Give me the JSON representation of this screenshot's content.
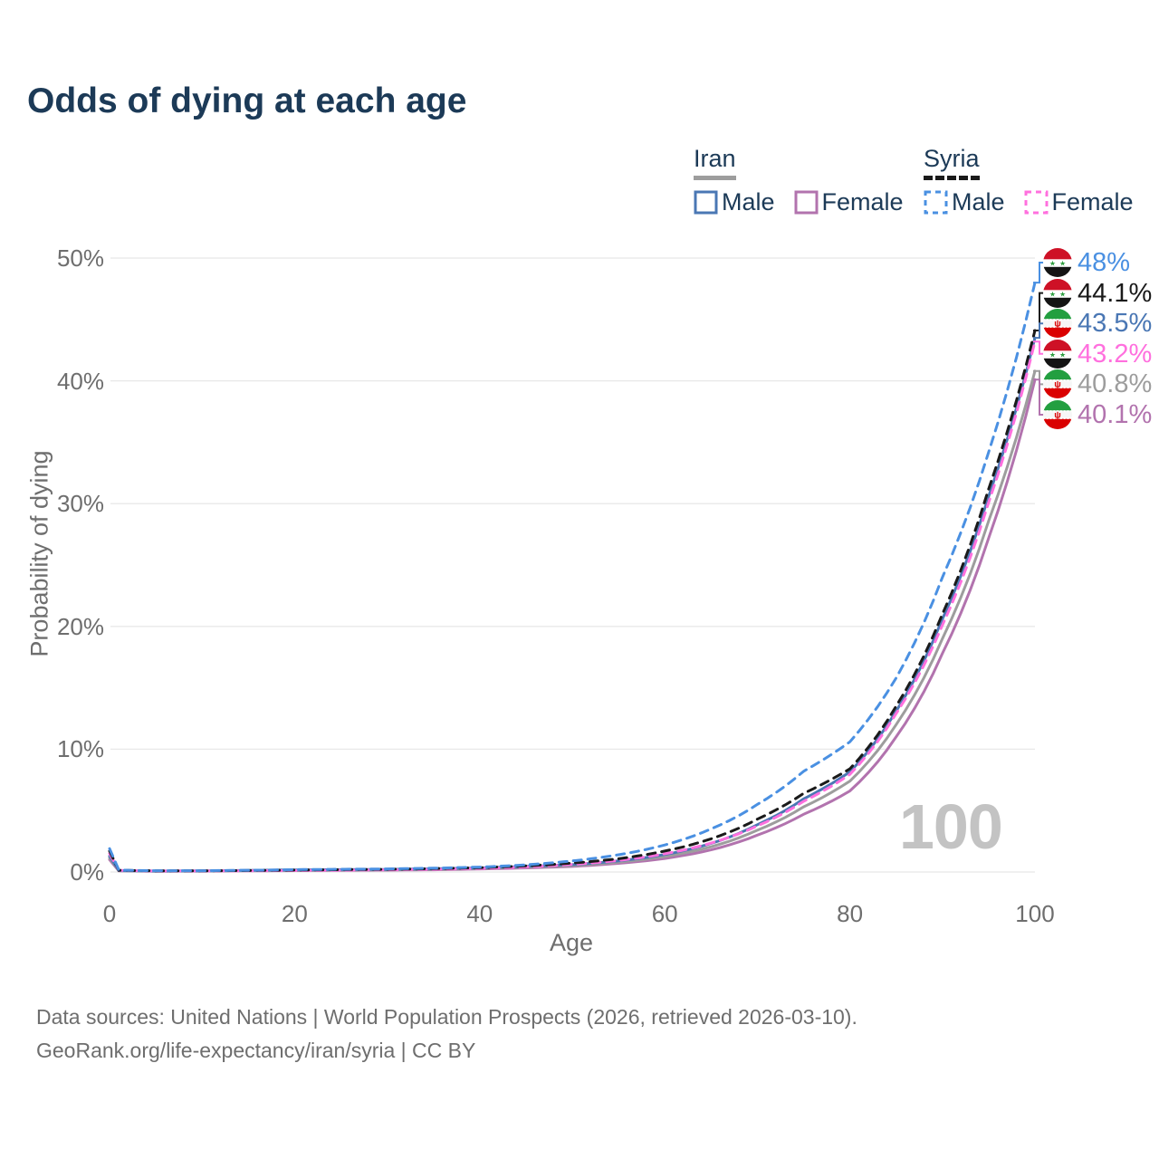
{
  "title": "Odds of dying at each age",
  "watermark_age": "100",
  "legend": {
    "groups": [
      {
        "label": "Iran",
        "line_style": "solid",
        "line_color": "#9d9d9d",
        "items": [
          {
            "label": "Male",
            "color": "#4a77b4"
          },
          {
            "label": "Female",
            "color": "#b273ae"
          }
        ]
      },
      {
        "label": "Syria",
        "line_style": "dashed",
        "line_color": "#1a1a1a",
        "items": [
          {
            "label": "Male",
            "color": "#4a90e2"
          },
          {
            "label": "Female",
            "color": "#ff70de"
          }
        ]
      }
    ]
  },
  "axes": {
    "x": {
      "label": "Age",
      "ticks": [
        "0",
        "20",
        "40",
        "60",
        "80",
        "100"
      ],
      "range": [
        0,
        100
      ]
    },
    "y": {
      "label": "Probability of dying",
      "ticks": [
        "0%",
        "10%",
        "20%",
        "30%",
        "40%",
        "50%"
      ],
      "range": [
        0,
        50
      ],
      "grid": true
    }
  },
  "chart_data": {
    "type": "line",
    "xlabel": "Age",
    "ylabel": "Probability of dying",
    "xlim": [
      0,
      100
    ],
    "ylim": [
      0,
      50
    ],
    "x": [
      0,
      1,
      5,
      10,
      15,
      20,
      25,
      30,
      35,
      40,
      45,
      50,
      55,
      60,
      65,
      70,
      75,
      80,
      85,
      90,
      95,
      100
    ],
    "series": [
      {
        "name": "Syria Male",
        "country": "syria",
        "sex": "male",
        "color": "#4a90e2",
        "dash": true,
        "end_label": "48%",
        "values": [
          1.9,
          0.16,
          0.1,
          0.1,
          0.14,
          0.19,
          0.22,
          0.25,
          0.31,
          0.4,
          0.58,
          0.9,
          1.4,
          2.2,
          3.5,
          5.5,
          8.2,
          10.6,
          15.8,
          24.0,
          34.2,
          48.0
        ]
      },
      {
        "name": "Syria Both sexes",
        "country": "syria",
        "sex": "both",
        "color": "#1a1a1a",
        "dash": true,
        "end_label": "44.1%",
        "values": [
          1.7,
          0.14,
          0.09,
          0.09,
          0.12,
          0.16,
          0.19,
          0.22,
          0.27,
          0.35,
          0.5,
          0.72,
          1.08,
          1.7,
          2.7,
          4.3,
          6.4,
          8.4,
          13.5,
          21.0,
          31.2,
          44.1
        ]
      },
      {
        "name": "Iran Male",
        "country": "iran",
        "sex": "male",
        "color": "#4a77b4",
        "dash": false,
        "end_label": "43.5%",
        "values": [
          1.3,
          0.11,
          0.08,
          0.09,
          0.13,
          0.17,
          0.19,
          0.21,
          0.26,
          0.33,
          0.46,
          0.6,
          0.9,
          1.42,
          2.32,
          3.85,
          5.95,
          8.15,
          13.1,
          20.6,
          30.6,
          43.5
        ]
      },
      {
        "name": "Syria Female",
        "country": "syria",
        "sex": "female",
        "color": "#ff70de",
        "dash": true,
        "end_label": "43.2%",
        "values": [
          1.5,
          0.13,
          0.08,
          0.08,
          0.1,
          0.12,
          0.15,
          0.18,
          0.22,
          0.29,
          0.41,
          0.62,
          0.94,
          1.48,
          2.35,
          3.75,
          5.75,
          7.95,
          12.9,
          20.1,
          30.1,
          43.2
        ]
      },
      {
        "name": "Iran Both sexes",
        "country": "iran",
        "sex": "both",
        "color": "#9d9d9d",
        "dash": false,
        "end_label": "40.8%",
        "values": [
          1.15,
          0.1,
          0.07,
          0.08,
          0.11,
          0.14,
          0.16,
          0.18,
          0.22,
          0.28,
          0.4,
          0.52,
          0.8,
          1.26,
          2.05,
          3.4,
          5.3,
          7.4,
          12.0,
          19.0,
          28.6,
          40.8
        ]
      },
      {
        "name": "Iran Female",
        "country": "iran",
        "sex": "female",
        "color": "#b273ae",
        "dash": false,
        "end_label": "40.1%",
        "values": [
          1.0,
          0.09,
          0.06,
          0.07,
          0.09,
          0.11,
          0.13,
          0.15,
          0.18,
          0.24,
          0.33,
          0.45,
          0.7,
          1.1,
          1.8,
          3.0,
          4.7,
          6.6,
          11.0,
          17.8,
          27.2,
          40.1
        ]
      }
    ],
    "title": "Odds of dying at each age",
    "legend_position": "top-right",
    "grid": "horizontal-only"
  },
  "source": {
    "line1": "Data sources: United Nations | World Population Prospects (2026, retrieved 2026-03-10).",
    "line2": "GeoRank.org/life-expectancy/iran/syria | CC BY"
  }
}
